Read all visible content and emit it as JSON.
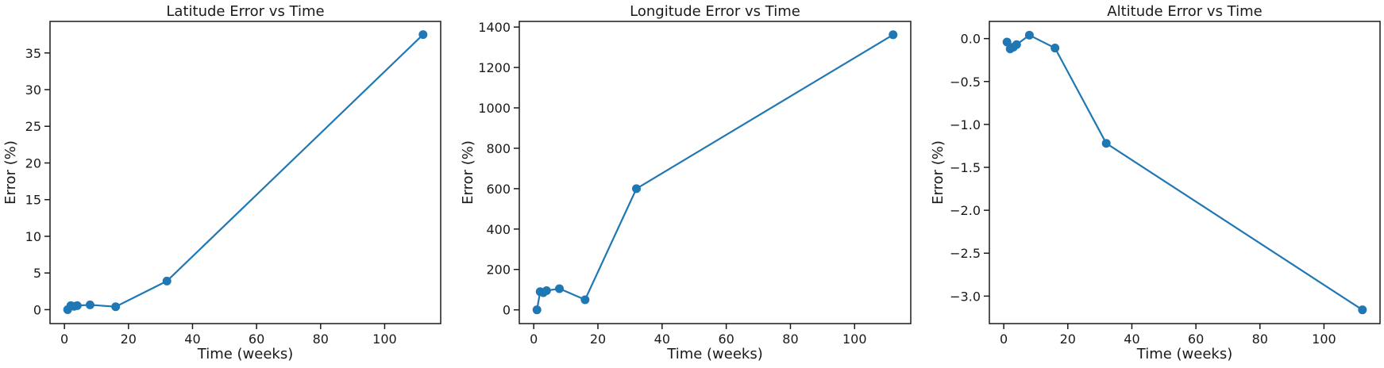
{
  "chart_data": [
    {
      "type": "line",
      "title": "Latitude Error vs Time",
      "xlabel": "Time (weeks)",
      "ylabel": "Error (%)",
      "xlim": [
        -4.5,
        117.5
      ],
      "ylim": [
        -1.9,
        39.3
      ],
      "xticks": [
        0,
        20,
        40,
        60,
        80,
        100
      ],
      "yticks": [
        0,
        5,
        10,
        15,
        20,
        25,
        30,
        35
      ],
      "tick_labels_x": [
        "0",
        "20",
        "40",
        "60",
        "80",
        "100"
      ],
      "tick_labels_y": [
        "0",
        "5",
        "10",
        "15",
        "20",
        "25",
        "30",
        "35"
      ],
      "grid": false,
      "color": "#1f77b4",
      "series": [
        {
          "x": [
            1,
            2,
            3,
            4,
            8,
            16,
            32,
            112
          ],
          "y": [
            0.0,
            0.55,
            0.45,
            0.55,
            0.65,
            0.4,
            3.9,
            37.5
          ]
        }
      ]
    },
    {
      "type": "line",
      "title": "Longitude Error vs Time",
      "xlabel": "Time (weeks)",
      "ylabel": "Error (%)",
      "xlim": [
        -4.5,
        117.5
      ],
      "ylim": [
        -68,
        1428
      ],
      "xticks": [
        0,
        20,
        40,
        60,
        80,
        100
      ],
      "yticks": [
        0,
        200,
        400,
        600,
        800,
        1000,
        1200,
        1400
      ],
      "tick_labels_x": [
        "0",
        "20",
        "40",
        "60",
        "80",
        "100"
      ],
      "tick_labels_y": [
        "0",
        "200",
        "400",
        "600",
        "800",
        "1000",
        "1200",
        "1400"
      ],
      "grid": false,
      "color": "#1f77b4",
      "series": [
        {
          "x": [
            1,
            2,
            3,
            4,
            8,
            16,
            32,
            112
          ],
          "y": [
            0,
            90,
            85,
            95,
            105,
            50,
            600,
            1362
          ]
        }
      ]
    },
    {
      "type": "line",
      "title": "Altitude Error vs Time",
      "xlabel": "Time (weeks)",
      "ylabel": "Error (%)",
      "xlim": [
        -4.5,
        117.5
      ],
      "ylim": [
        -3.32,
        0.2
      ],
      "xticks": [
        0,
        20,
        40,
        60,
        80,
        100
      ],
      "yticks": [
        0.0,
        -0.5,
        -1.0,
        -1.5,
        -2.0,
        -2.5,
        -3.0
      ],
      "tick_labels_x": [
        "0",
        "20",
        "40",
        "60",
        "80",
        "100"
      ],
      "tick_labels_y": [
        "0.0",
        "−0.5",
        "−1.0",
        "−1.5",
        "−2.0",
        "−2.5",
        "−3.0"
      ],
      "grid": false,
      "color": "#1f77b4",
      "series": [
        {
          "x": [
            1,
            2,
            3,
            4,
            8,
            16,
            32,
            112
          ],
          "y": [
            -0.04,
            -0.12,
            -0.1,
            -0.07,
            0.04,
            -0.11,
            -1.22,
            -3.16
          ]
        }
      ]
    }
  ]
}
